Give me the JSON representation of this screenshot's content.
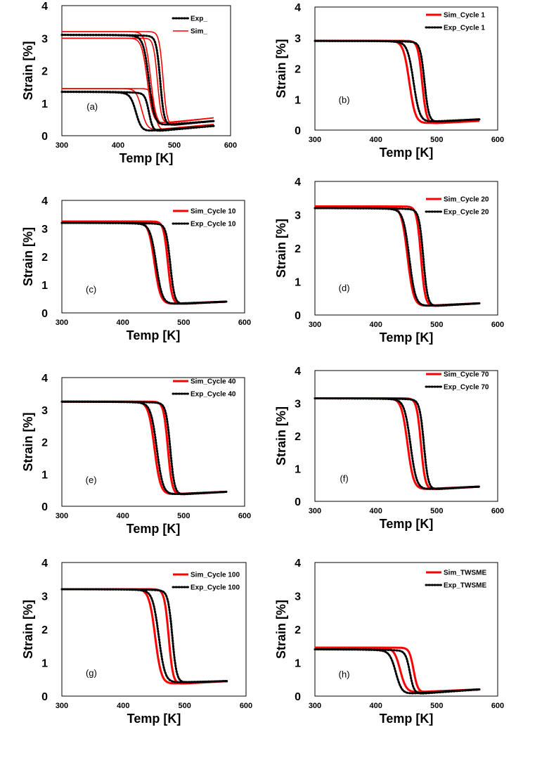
{
  "chart_data": [
    {
      "type": "line",
      "panel_label": "(a)",
      "xlabel": "Temp [K]",
      "ylabel": "Strain [%]",
      "xlim": [
        300,
        600
      ],
      "ylim": [
        0,
        4
      ],
      "xticks": [
        "300",
        "400",
        "500",
        "600"
      ],
      "yticks": [
        "0",
        "1",
        "2",
        "3",
        "4"
      ],
      "legend": [
        "Exp_",
        "Sim_"
      ],
      "series": [
        {
          "name": "Sim_ heating (high)",
          "style": "sim",
          "thin": true,
          "kind": "heat",
          "high": 3.2,
          "low": 0.28,
          "end": 0.45,
          "T": 480
        },
        {
          "name": "Sim_ cooling (high)",
          "style": "sim",
          "thin": true,
          "kind": "cool",
          "high": 3.2,
          "low": 0.28,
          "end": 0.45,
          "T": 458
        },
        {
          "name": "Sim_ heating (mid)",
          "style": "sim",
          "thin": true,
          "kind": "heat",
          "high": 3.0,
          "low": 0.35,
          "end": 0.55,
          "T": 470
        },
        {
          "name": "Sim_ cooling (mid)",
          "style": "sim",
          "thin": true,
          "kind": "cool",
          "high": 3.0,
          "low": 0.35,
          "end": 0.55,
          "T": 452
        },
        {
          "name": "Sim_ heating (low)",
          "style": "sim",
          "thin": true,
          "kind": "heat",
          "high": 1.45,
          "low": 0.15,
          "end": 0.35,
          "T": 465
        },
        {
          "name": "Sim_ cooling (low)",
          "style": "sim",
          "thin": true,
          "kind": "cool",
          "high": 1.45,
          "low": 0.15,
          "end": 0.35,
          "T": 442
        },
        {
          "name": "Exp_ heating (high)",
          "style": "exp",
          "kind": "heat",
          "high": 3.1,
          "low": 0.3,
          "end": 0.45,
          "T": 475
        },
        {
          "name": "Exp_ cooling (high)",
          "style": "exp",
          "kind": "cool",
          "high": 3.1,
          "low": 0.3,
          "end": 0.45,
          "T": 455
        },
        {
          "name": "Exp_ heating (low)",
          "style": "exp",
          "kind": "heat",
          "high": 1.35,
          "low": 0.12,
          "end": 0.3,
          "T": 455
        },
        {
          "name": "Exp_ cooling (low)",
          "style": "exp",
          "kind": "cool",
          "high": 1.35,
          "low": 0.12,
          "end": 0.3,
          "T": 432
        }
      ]
    },
    {
      "type": "line",
      "panel_label": "(b)",
      "xlabel": "Temp [K]",
      "ylabel": "Strain [%]",
      "xlim": [
        300,
        600
      ],
      "ylim": [
        0,
        4
      ],
      "xticks": [
        "300",
        "400",
        "500",
        "600"
      ],
      "yticks": [
        "0",
        "1",
        "2",
        "3",
        "4"
      ],
      "legend": [
        "Sim_Cycle 1",
        "Exp_Cycle 1"
      ],
      "series": [
        {
          "name": "Sim_Cycle 1 heating",
          "style": "sim",
          "kind": "heat",
          "high": 2.9,
          "low": 0.2,
          "end": 0.3,
          "T": 476
        },
        {
          "name": "Sim_Cycle 1 cooling",
          "style": "sim",
          "kind": "cool",
          "high": 2.9,
          "low": 0.2,
          "end": 0.3,
          "T": 455
        },
        {
          "name": "Exp_Cycle 1 heating",
          "style": "exp",
          "kind": "heat",
          "high": 2.9,
          "low": 0.25,
          "end": 0.35,
          "T": 480
        },
        {
          "name": "Exp_Cycle 1 cooling",
          "style": "exp",
          "kind": "cool",
          "high": 2.9,
          "low": 0.25,
          "end": 0.35,
          "T": 462
        }
      ]
    },
    {
      "type": "line",
      "panel_label": "(c)",
      "xlabel": "Temp [K]",
      "ylabel": "Strain [%]",
      "xlim": [
        300,
        600
      ],
      "ylim": [
        0,
        4
      ],
      "xticks": [
        "300",
        "400",
        "500",
        "600"
      ],
      "yticks": [
        "0",
        "1",
        "2",
        "3",
        "4"
      ],
      "legend": [
        "Sim_Cycle 10",
        "Exp_Cycle 10"
      ],
      "series": [
        {
          "name": "Sim_Cycle 10 heating",
          "style": "sim",
          "kind": "heat",
          "high": 3.25,
          "low": 0.3,
          "end": 0.4,
          "T": 474
        },
        {
          "name": "Sim_Cycle 10 cooling",
          "style": "sim",
          "kind": "cool",
          "high": 3.25,
          "low": 0.3,
          "end": 0.4,
          "T": 452
        },
        {
          "name": "Exp_Cycle 10 heating",
          "style": "exp",
          "kind": "heat",
          "high": 3.2,
          "low": 0.3,
          "end": 0.4,
          "T": 478
        },
        {
          "name": "Exp_Cycle 10 cooling",
          "style": "exp",
          "kind": "cool",
          "high": 3.2,
          "low": 0.3,
          "end": 0.4,
          "T": 455
        }
      ]
    },
    {
      "type": "line",
      "panel_label": "(d)",
      "xlabel": "Temp [K]",
      "ylabel": "Strain [%]",
      "xlim": [
        300,
        600
      ],
      "ylim": [
        0,
        4
      ],
      "xticks": [
        "300",
        "400",
        "500",
        "600"
      ],
      "yticks": [
        "0",
        "1",
        "2",
        "3",
        "4"
      ],
      "legend": [
        "Sim_Cycle 20",
        "Exp_Cycle 20"
      ],
      "series": [
        {
          "name": "Sim_Cycle 20 heating",
          "style": "sim",
          "kind": "heat",
          "high": 3.25,
          "low": 0.25,
          "end": 0.35,
          "T": 474
        },
        {
          "name": "Sim_Cycle 20 cooling",
          "style": "sim",
          "kind": "cool",
          "high": 3.25,
          "low": 0.25,
          "end": 0.35,
          "T": 452
        },
        {
          "name": "Exp_Cycle 20 heating",
          "style": "exp",
          "kind": "heat",
          "high": 3.2,
          "low": 0.25,
          "end": 0.35,
          "T": 478
        },
        {
          "name": "Exp_Cycle 20 cooling",
          "style": "exp",
          "kind": "cool",
          "high": 3.2,
          "low": 0.25,
          "end": 0.35,
          "T": 455
        }
      ]
    },
    {
      "type": "line",
      "panel_label": "(e)",
      "xlabel": "Temp [K]",
      "ylabel": "Strain [%]",
      "xlim": [
        300,
        600
      ],
      "ylim": [
        0,
        4
      ],
      "xticks": [
        "300",
        "400",
        "500",
        "600"
      ],
      "yticks": [
        "0",
        "1",
        "2",
        "3",
        "4"
      ],
      "legend": [
        "Sim_Cycle 40",
        "Exp_Cycle 40"
      ],
      "series": [
        {
          "name": "Sim_Cycle 40 heating",
          "style": "sim",
          "kind": "heat",
          "high": 3.25,
          "low": 0.35,
          "end": 0.45,
          "T": 474
        },
        {
          "name": "Sim_Cycle 40 cooling",
          "style": "sim",
          "kind": "cool",
          "high": 3.25,
          "low": 0.35,
          "end": 0.45,
          "T": 452
        },
        {
          "name": "Exp_Cycle 40 heating",
          "style": "exp",
          "kind": "heat",
          "high": 3.25,
          "low": 0.35,
          "end": 0.45,
          "T": 478
        },
        {
          "name": "Exp_Cycle 40 cooling",
          "style": "exp",
          "kind": "cool",
          "high": 3.25,
          "low": 0.35,
          "end": 0.45,
          "T": 456
        }
      ]
    },
    {
      "type": "line",
      "panel_label": "(f)",
      "xlabel": "Temp [K]",
      "ylabel": "Strain [%]",
      "xlim": [
        300,
        600
      ],
      "ylim": [
        0,
        4
      ],
      "xticks": [
        "300",
        "400",
        "500",
        "600"
      ],
      "yticks": [
        "0",
        "1",
        "2",
        "3",
        "4"
      ],
      "legend": [
        "Sim_Cycle 70",
        "Exp_Cycle 70"
      ],
      "series": [
        {
          "name": "Sim_Cycle 70 heating",
          "style": "sim",
          "kind": "heat",
          "high": 3.15,
          "low": 0.35,
          "end": 0.45,
          "T": 474
        },
        {
          "name": "Sim_Cycle 70 cooling",
          "style": "sim",
          "kind": "cool",
          "high": 3.15,
          "low": 0.35,
          "end": 0.45,
          "T": 452
        },
        {
          "name": "Exp_Cycle 70 heating",
          "style": "exp",
          "kind": "heat",
          "high": 3.15,
          "low": 0.35,
          "end": 0.45,
          "T": 479
        },
        {
          "name": "Exp_Cycle 70 cooling",
          "style": "exp",
          "kind": "cool",
          "high": 3.15,
          "low": 0.35,
          "end": 0.45,
          "T": 457
        }
      ]
    },
    {
      "type": "line",
      "panel_label": "(g)",
      "xlabel": "Temp [K]",
      "ylabel": "Strain [%]",
      "xlim": [
        300,
        600
      ],
      "ylim": [
        0,
        4
      ],
      "xticks": [
        "300",
        "400",
        "500",
        "600"
      ],
      "yticks": [
        "0",
        "1",
        "2",
        "3",
        "4"
      ],
      "legend": [
        "Sim_Cycle 100",
        "Exp_Cycle 100"
      ],
      "series": [
        {
          "name": "Sim_Cycle 100 heating",
          "style": "sim",
          "kind": "heat",
          "high": 3.2,
          "low": 0.35,
          "end": 0.45,
          "T": 474
        },
        {
          "name": "Sim_Cycle 100 cooling",
          "style": "sim",
          "kind": "cool",
          "high": 3.2,
          "low": 0.35,
          "end": 0.45,
          "T": 452
        },
        {
          "name": "Exp_Cycle 100 heating",
          "style": "exp",
          "kind": "heat",
          "high": 3.2,
          "low": 0.4,
          "end": 0.45,
          "T": 480
        },
        {
          "name": "Exp_Cycle 100 cooling",
          "style": "exp",
          "kind": "cool",
          "high": 3.2,
          "low": 0.4,
          "end": 0.45,
          "T": 458
        }
      ]
    },
    {
      "type": "line",
      "panel_label": "(h)",
      "xlabel": "Temp [K]",
      "ylabel": "Strain [%]",
      "xlim": [
        300,
        600
      ],
      "ylim": [
        0,
        4
      ],
      "xticks": [
        "300",
        "400",
        "500",
        "600"
      ],
      "yticks": [
        "0",
        "1",
        "2",
        "3",
        "4"
      ],
      "legend": [
        "Sim_TWSME",
        "Exp_TWSME"
      ],
      "series": [
        {
          "name": "Sim_TWSME heating",
          "style": "sim",
          "kind": "heat",
          "high": 1.45,
          "low": 0.1,
          "end": 0.2,
          "T": 462
        },
        {
          "name": "Sim_TWSME cooling",
          "style": "sim",
          "kind": "cool",
          "high": 1.45,
          "low": 0.1,
          "end": 0.2,
          "T": 440
        },
        {
          "name": "Exp_TWSME heating",
          "style": "exp",
          "kind": "heat",
          "high": 1.4,
          "low": 0.05,
          "end": 0.2,
          "T": 456
        },
        {
          "name": "Exp_TWSME cooling",
          "style": "exp",
          "kind": "cool",
          "high": 1.4,
          "low": 0.05,
          "end": 0.2,
          "T": 433
        }
      ]
    }
  ],
  "colors": {
    "sim": "#ff0000",
    "exp": "#000000",
    "frame": "#000000"
  }
}
